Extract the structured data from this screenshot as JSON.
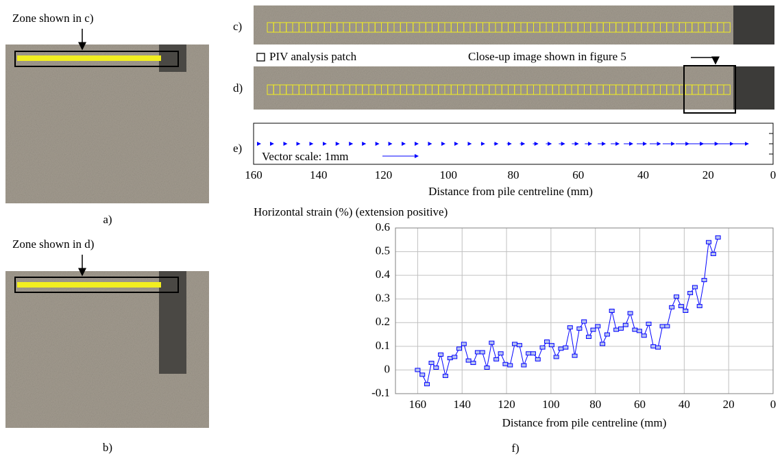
{
  "labels": {
    "zone_c": "Zone shown in c)",
    "label_a": "a)",
    "zone_d": "Zone shown in d)",
    "label_b": "b)",
    "label_c": "c)",
    "patch_legend": "PIV analysis patch",
    "closeup": "Close-up image shown in figure 5",
    "label_d": "d)",
    "label_e": "e)",
    "label_f": "f)"
  },
  "chart_data": [
    {
      "type": "quiver",
      "color": "#0000ff",
      "x": [
        158,
        154,
        150,
        146,
        142,
        138,
        134,
        130,
        126,
        122,
        118,
        114,
        110,
        106,
        102,
        98,
        94,
        90,
        86,
        82,
        78,
        74,
        70,
        66,
        62,
        58,
        54,
        50,
        46,
        42,
        38,
        34,
        30,
        26,
        22,
        18,
        14
      ],
      "values": [
        0.01,
        0.01,
        0.02,
        0.02,
        0.02,
        0.03,
        0.03,
        0.04,
        0.04,
        0.05,
        0.05,
        0.06,
        0.06,
        0.07,
        0.08,
        0.08,
        0.09,
        0.1,
        0.11,
        0.12,
        0.13,
        0.14,
        0.15,
        0.16,
        0.18,
        0.19,
        0.21,
        0.23,
        0.25,
        0.27,
        0.3,
        0.33,
        0.37,
        0.41,
        0.46,
        0.52,
        0.58
      ],
      "xlim": [
        160,
        0
      ],
      "xticks": [
        160,
        140,
        120,
        100,
        80,
        60,
        40,
        20,
        0
      ],
      "xlabel": "Distance from pile centreline (mm)",
      "scale_label": "Vector scale: 1mm",
      "vector_scale": 1
    },
    {
      "type": "line",
      "color": "#0000ff",
      "ylabel": "Horizontal strain (%) (extension positive)",
      "xlabel": "Distance from pile centreline (mm)",
      "x": [
        160,
        157.9,
        155.8,
        153.8,
        151.7,
        149.6,
        147.5,
        145.4,
        143.4,
        141.3,
        139.2,
        137.1,
        135.0,
        133.0,
        130.9,
        128.8,
        126.7,
        124.6,
        122.6,
        120.5,
        118.4,
        116.3,
        114.2,
        112.2,
        110.1,
        108.0,
        105.9,
        103.8,
        101.8,
        99.7,
        97.6,
        95.5,
        93.4,
        91.4,
        89.3,
        87.2,
        85.1,
        83.0,
        81.0,
        78.9,
        76.8,
        74.7,
        72.6,
        70.6,
        68.5,
        66.4,
        64.3,
        62.2,
        60.2,
        58.1,
        56.0,
        53.9,
        51.8,
        49.8,
        47.7,
        45.6,
        43.5,
        41.4,
        39.4,
        37.3,
        35.2,
        33.1,
        31.0,
        29.0,
        26.9,
        24.8
      ],
      "values": [
        0,
        -0.02,
        -0.06,
        0.03,
        0.01,
        0.065,
        -0.025,
        0.05,
        0.055,
        0.09,
        0.11,
        0.04,
        0.03,
        0.075,
        0.075,
        0.01,
        0.115,
        0.045,
        0.07,
        0.025,
        0.02,
        0.11,
        0.105,
        0.02,
        0.07,
        0.07,
        0.045,
        0.095,
        0.12,
        0.105,
        0.055,
        0.09,
        0.095,
        0.18,
        0.06,
        0.175,
        0.205,
        0.14,
        0.17,
        0.185,
        0.11,
        0.15,
        0.25,
        0.17,
        0.175,
        0.19,
        0.24,
        0.17,
        0.165,
        0.145,
        0.195,
        0.1,
        0.095,
        0.185,
        0.185,
        0.265,
        0.31,
        0.27,
        0.25,
        0.325,
        0.35,
        0.27,
        0.38,
        0.54,
        0.49,
        0.56
      ],
      "xlim": [
        170,
        0
      ],
      "xticks": [
        160,
        140,
        120,
        100,
        80,
        60,
        40,
        20,
        0
      ],
      "ylim": [
        -0.1,
        0.6
      ],
      "yticks": [
        -0.1,
        0,
        0.1,
        0.2,
        0.3,
        0.4,
        0.5,
        0.6
      ],
      "grid": true
    }
  ]
}
